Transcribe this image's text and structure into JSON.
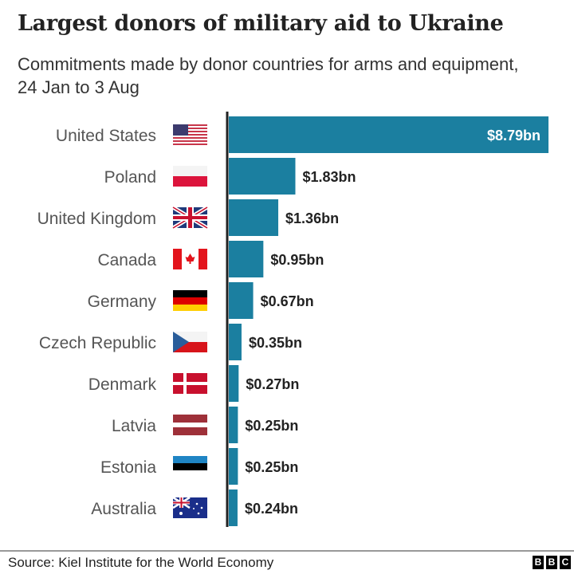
{
  "title": "Largest donors of military aid to Ukraine",
  "subtitle": "Commitments made by donor countries for arms and equipment, 24 Jan to 3 Aug",
  "source": "Source: Kiel Institute for the World Economy",
  "logo": [
    "B",
    "B",
    "C"
  ],
  "colors": {
    "bar": "#1b7fa0",
    "label": "#555555",
    "value": "#222222",
    "value_inside": "#ffffff"
  },
  "chart_data": {
    "type": "bar",
    "orientation": "horizontal",
    "unit": "$bn",
    "categories": [
      "United States",
      "Poland",
      "United Kingdom",
      "Canada",
      "Germany",
      "Czech Republic",
      "Denmark",
      "Latvia",
      "Estonia",
      "Australia"
    ],
    "flags": [
      "us-flag-icon",
      "poland-flag-icon",
      "uk-flag-icon",
      "canada-flag-icon",
      "germany-flag-icon",
      "czech-flag-icon",
      "denmark-flag-icon",
      "latvia-flag-icon",
      "estonia-flag-icon",
      "australia-flag-icon"
    ],
    "values": [
      8.79,
      1.83,
      1.36,
      0.95,
      0.67,
      0.35,
      0.27,
      0.25,
      0.25,
      0.24
    ],
    "data_labels": [
      "$8.79bn",
      "$1.83bn",
      "$1.36bn",
      "$0.95bn",
      "$0.67bn",
      "$0.35bn",
      "$0.27bn",
      "$0.25bn",
      "$0.25bn",
      "$0.24bn"
    ],
    "xlim": [
      0,
      8.79
    ],
    "grid": false
  }
}
